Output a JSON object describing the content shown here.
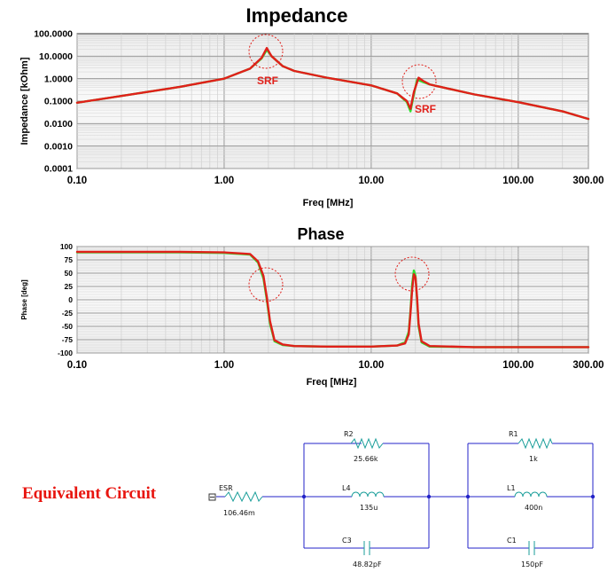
{
  "chart_data": [
    {
      "type": "line",
      "title": "Impedance",
      "xlabel": "Freq [MHz]",
      "ylabel": "Impedance [kOhm]",
      "x_scale": "log",
      "y_scale": "log",
      "xlim": [
        0.1,
        300
      ],
      "ylim": [
        0.0001,
        100
      ],
      "x_ticks": [
        0.1,
        1,
        10,
        100,
        300
      ],
      "x_tick_labels": [
        "0.10",
        "1.00",
        "10.00",
        "100.00",
        "300.00"
      ],
      "y_ticks": [
        100,
        10,
        1,
        0.1,
        0.01,
        0.001,
        0.0001
      ],
      "y_tick_labels": [
        "100.0000",
        "10.0000",
        "1.0000",
        "0.1000",
        "0.0100",
        "0.0010",
        "0.0001"
      ],
      "grid": true,
      "colors": {
        "measured": "#2ee02e",
        "simulated": "#e0201a"
      },
      "annotations": [
        {
          "text": "SRF",
          "x": 1.95,
          "y": 22
        },
        {
          "text": "SRF",
          "x": 20.5,
          "y": 1.0
        }
      ],
      "series": [
        {
          "x": [
            0.1,
            0.2,
            0.5,
            1.0,
            1.5,
            1.8,
            1.95,
            2.1,
            2.5,
            3.0,
            5.0,
            10.0,
            15.0,
            17.5,
            18.5,
            19.5,
            20.5,
            22.0,
            25.0,
            30.0,
            50.0,
            100.0,
            200.0,
            300.0
          ],
          "y": [
            0.085,
            0.17,
            0.43,
            1.0,
            2.8,
            8.0,
            19.0,
            10.0,
            3.6,
            2.2,
            1.1,
            0.5,
            0.22,
            0.09,
            0.035,
            0.2,
            0.9,
            0.75,
            0.55,
            0.42,
            0.2,
            0.09,
            0.035,
            0.016
          ]
        },
        {
          "x": [
            0.1,
            0.2,
            0.5,
            1.0,
            1.5,
            1.8,
            1.95,
            2.1,
            2.5,
            3.0,
            5.0,
            10.0,
            15.0,
            17.5,
            18.5,
            19.5,
            21.0,
            22.5,
            25.0,
            30.0,
            50.0,
            100.0,
            200.0,
            300.0
          ],
          "y": [
            0.085,
            0.17,
            0.43,
            1.0,
            2.8,
            8.5,
            23.0,
            10.0,
            3.6,
            2.2,
            1.1,
            0.5,
            0.22,
            0.1,
            0.045,
            0.25,
            1.1,
            0.8,
            0.55,
            0.42,
            0.2,
            0.09,
            0.035,
            0.016
          ]
        }
      ]
    },
    {
      "type": "line",
      "title": "Phase",
      "xlabel": "Freq [MHz]",
      "ylabel": "Phase [deg]",
      "x_scale": "log",
      "xlim": [
        0.1,
        300
      ],
      "ylim": [
        -100,
        100
      ],
      "x_ticks": [
        0.1,
        1,
        10,
        100,
        300
      ],
      "x_tick_labels": [
        "0.10",
        "1.00",
        "10.00",
        "100.00",
        "300.00"
      ],
      "y_ticks": [
        100,
        75,
        50,
        25,
        0,
        -25,
        -50,
        -75,
        -100
      ],
      "y_tick_labels": [
        "100",
        "75",
        "50",
        "25",
        "0",
        "-25",
        "-50",
        "-75",
        "-100"
      ],
      "grid": true,
      "series": [
        {
          "x": [
            0.1,
            0.5,
            1.0,
            1.5,
            1.7,
            1.85,
            1.95,
            2.05,
            2.2,
            2.5,
            3.0,
            5.0,
            10.0,
            15.0,
            17.0,
            18.0,
            18.5,
            19.0,
            19.5,
            20.0,
            20.5,
            21.0,
            22.0,
            25.0,
            50.0,
            100.0,
            300.0
          ],
          "y": [
            89,
            89,
            88,
            85,
            70,
            40,
            0,
            -45,
            -78,
            -85,
            -87,
            -88,
            -88,
            -86,
            -80,
            -60,
            -20,
            30,
            55,
            45,
            0,
            -50,
            -80,
            -88,
            -89,
            -89,
            -89
          ]
        },
        {
          "x": [
            0.1,
            0.5,
            1.0,
            1.5,
            1.7,
            1.85,
            1.95,
            2.05,
            2.2,
            2.5,
            3.0,
            5.0,
            10.0,
            15.0,
            17.0,
            18.0,
            18.5,
            19.0,
            19.5,
            20.0,
            20.5,
            21.0,
            22.0,
            25.0,
            50.0,
            100.0,
            300.0
          ],
          "y": [
            90,
            90,
            89,
            86,
            72,
            45,
            5,
            -40,
            -76,
            -84,
            -87,
            -88,
            -88,
            -86,
            -82,
            -65,
            -25,
            20,
            48,
            42,
            5,
            -45,
            -78,
            -87,
            -89,
            -89,
            -89
          ]
        }
      ]
    }
  ],
  "equivalent_circuit": {
    "heading": "Equivalent Circuit",
    "esr": {
      "name": "ESR",
      "value": "106.46m"
    },
    "block1": {
      "r": {
        "name": "R2",
        "value": "25.66k"
      },
      "l": {
        "name": "L4",
        "value": "135u"
      },
      "c": {
        "name": "C3",
        "value": "48.82pF"
      }
    },
    "block2": {
      "r": {
        "name": "R1",
        "value": "1k"
      },
      "l": {
        "name": "L1",
        "value": "400n"
      },
      "c": {
        "name": "C1",
        "value": "150pF"
      }
    },
    "wire_color": "#2323c8",
    "part_color": "#1a9e9a"
  }
}
